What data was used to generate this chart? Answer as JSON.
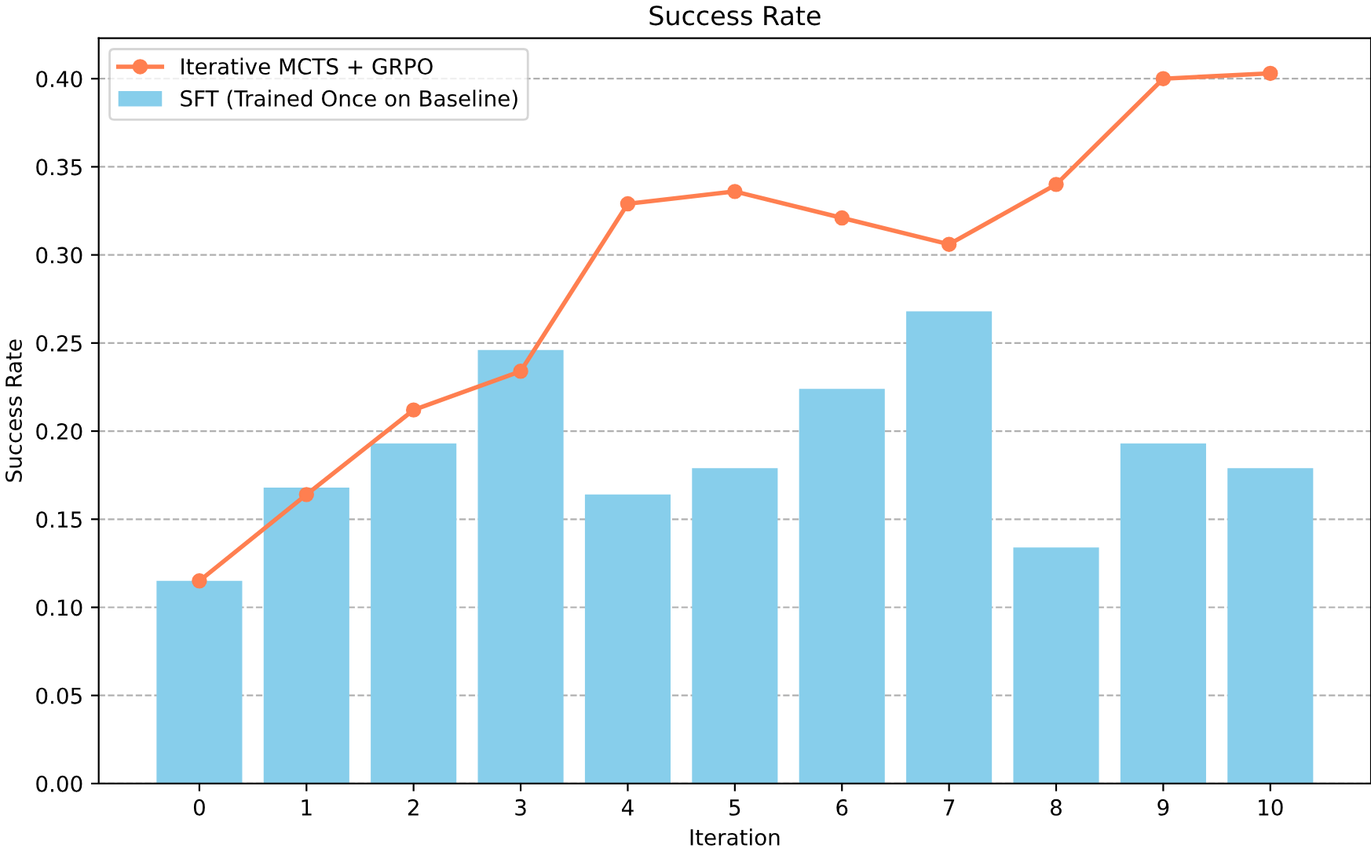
{
  "chart_data": {
    "type": "bar",
    "title": "Success Rate",
    "xlabel": "Iteration",
    "ylabel": "Success Rate",
    "categories": [
      "0",
      "1",
      "2",
      "3",
      "4",
      "5",
      "6",
      "7",
      "8",
      "9",
      "10"
    ],
    "series": [
      {
        "name": "Iterative MCTS + GRPO",
        "type": "line",
        "color": "#ff7f50",
        "marker": "circle",
        "line_style": "solid",
        "values": [
          0.115,
          0.164,
          0.212,
          0.234,
          0.329,
          0.336,
          0.321,
          0.306,
          0.34,
          0.4,
          0.403
        ]
      },
      {
        "name": "SFT (Trained Once on Baseline)",
        "color": "#87ceeb",
        "values": [
          0.115,
          0.168,
          0.193,
          0.246,
          0.164,
          0.179,
          0.224,
          0.268,
          0.134,
          0.193,
          0.179
        ]
      }
    ],
    "ylim": [
      0,
      0.423
    ],
    "yticks": [
      {
        "value": 0,
        "label": "0.00"
      },
      {
        "value": 0.05,
        "label": "0.05"
      },
      {
        "value": 0.1,
        "label": "0.10"
      },
      {
        "value": 0.15,
        "label": "0.15"
      },
      {
        "value": 0.2,
        "label": "0.20"
      },
      {
        "value": 0.25,
        "label": "0.25"
      },
      {
        "value": 0.3,
        "label": "0.30"
      },
      {
        "value": 0.35,
        "label": "0.35"
      },
      {
        "value": 0.4,
        "label": "0.40"
      }
    ],
    "grid": "y",
    "legend": "top left"
  }
}
